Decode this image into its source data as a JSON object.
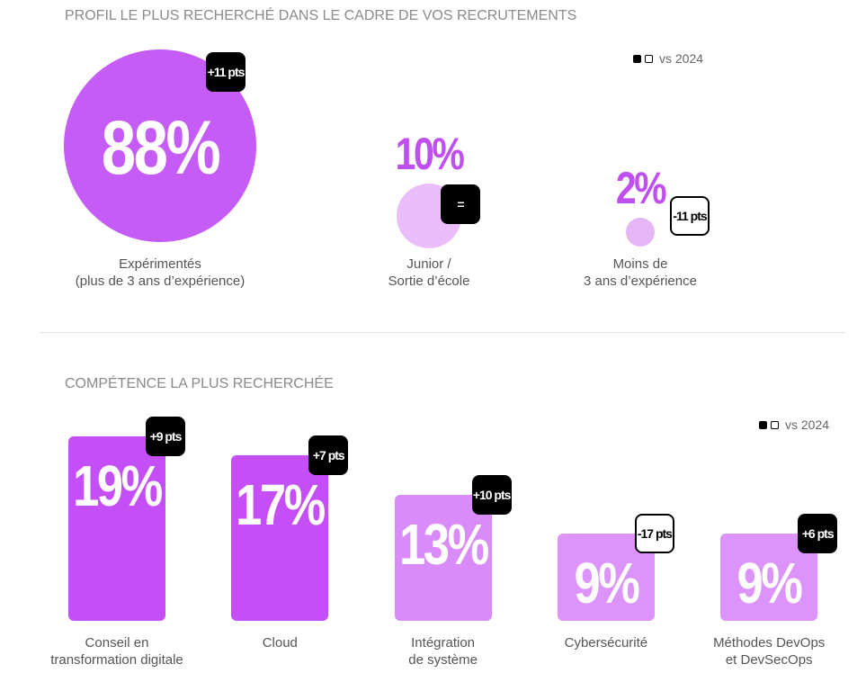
{
  "chart_data": [
    {
      "type": "bubble",
      "title": "PROFIL LE PLUS RECHERCHÉ DANS LE CADRE DE VOS RECRUTEMENTS",
      "legend": "vs 2024",
      "categories": [
        "Expérimentés\n(plus de 3 ans d’expérience)",
        "Junior /\nSortie d’école",
        "Moins de\n3 ans d’expérience"
      ],
      "values": [
        88,
        10,
        2
      ],
      "value_labels": [
        "88%",
        "10%",
        "2%"
      ],
      "changes": [
        "+11 pts",
        "=",
        "-11 pts"
      ],
      "colors": [
        "#c55cf5",
        "#ebbdfa",
        "#e6b6f7"
      ]
    },
    {
      "type": "bar",
      "title": "COMPÉTENCE LA PLUS RECHERCHÉE",
      "legend": "vs 2024",
      "categories": [
        "Conseil en\ntransformation digitale",
        "Cloud",
        "Intégration\nde système",
        "Cybersécurité",
        "Méthodes DevOps\net DevSecOps"
      ],
      "values": [
        19,
        17,
        13,
        9,
        9
      ],
      "value_labels": [
        "19%",
        "17%",
        "13%",
        "9%",
        "9%"
      ],
      "changes": [
        "+9 pts",
        "+7 pts",
        "+10 pts",
        "-17 pts",
        "+6 pts"
      ],
      "colors": [
        "#c44ff6",
        "#c44ff6",
        "#d98cf9",
        "#dc94fa",
        "#dc94fa"
      ]
    }
  ]
}
